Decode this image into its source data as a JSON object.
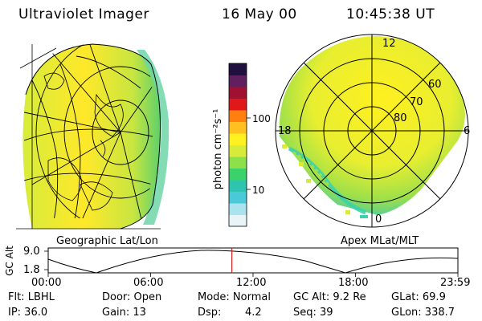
{
  "header": {
    "instrument": "Ultraviolet Imager",
    "date": "16 May 00",
    "time": "10:45:38 UT"
  },
  "panels": {
    "left_label": "Geographic Lat/Lon",
    "right_label": "Apex MLat/MLT"
  },
  "colorbar": {
    "unit_label": "photon cm⁻²s⁻¹",
    "ticks": [
      "100",
      "10"
    ],
    "colors": [
      "#e8f4f8",
      "#a9e4ee",
      "#4cc9d8",
      "#2ec4b0",
      "#3bd26b",
      "#8ee04a",
      "#d7ec3a",
      "#fff020",
      "#ffc020",
      "#ff8010",
      "#e01818",
      "#a01030",
      "#602060",
      "#201040"
    ]
  },
  "mlt_plot": {
    "mlt_labels": [
      "12",
      "18",
      "6",
      "0"
    ],
    "lat_labels": [
      "60",
      "70",
      "80"
    ]
  },
  "altitude_plot": {
    "ylabel": "GC Alt",
    "yticks": [
      "9.0",
      "1.8"
    ],
    "xticks": [
      "00:00",
      "06:00",
      "12:00",
      "18:00",
      "23:59"
    ],
    "marker_hour": 10.76
  },
  "info": {
    "flt": "Flt: LBHL",
    "ip": "IP: 36.0",
    "door": "Door: Open",
    "gain": "Gain: 13",
    "mode": "Mode: Normal",
    "dsp_label": "Dsp:",
    "dsp_value": "4.2",
    "gcalt": "GC Alt: 9.2 Re",
    "seq": "Seq: 39",
    "glat": "GLat:  69.9",
    "glon": "GLon: 338.7"
  }
}
